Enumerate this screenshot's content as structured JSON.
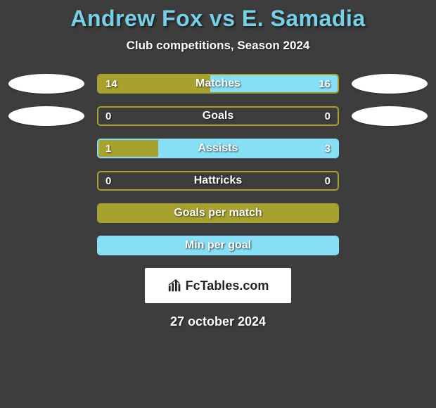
{
  "title": "Andrew Fox vs E. Samadia",
  "subtitle": "Club competitions, Season 2024",
  "colors": {
    "title_color": "#76d1e8",
    "background": "#3d3d3d",
    "ellipse": "#ffffff",
    "text": "#ffffff"
  },
  "bars": [
    {
      "label": "Matches",
      "left_value": "14",
      "right_value": "16",
      "left_pct": 46.7,
      "right_pct": 53.3,
      "left_color": "#a7a22f",
      "right_color": "#86dff5",
      "border_color": "#a7a22f",
      "show_ellipses": true
    },
    {
      "label": "Goals",
      "left_value": "0",
      "right_value": "0",
      "left_pct": 0,
      "right_pct": 0,
      "left_color": "#a7a22f",
      "right_color": "#86dff5",
      "border_color": "#a7a22f",
      "show_ellipses": true
    },
    {
      "label": "Assists",
      "left_value": "1",
      "right_value": "3",
      "left_pct": 25,
      "right_pct": 75,
      "left_color": "#a7a22f",
      "right_color": "#86dff5",
      "border_color": "#86dff5",
      "show_ellipses": false
    },
    {
      "label": "Hattricks",
      "left_value": "0",
      "right_value": "0",
      "left_pct": 0,
      "right_pct": 0,
      "left_color": "#a7a22f",
      "right_color": "#86dff5",
      "border_color": "#a7a22f",
      "show_ellipses": false
    },
    {
      "label": "Goals per match",
      "left_value": "",
      "right_value": "",
      "left_pct": 100,
      "right_pct": 0,
      "left_color": "#a7a22f",
      "right_color": "#86dff5",
      "border_color": "#a7a22f",
      "show_ellipses": false
    },
    {
      "label": "Min per goal",
      "left_value": "",
      "right_value": "",
      "left_pct": 0,
      "right_pct": 100,
      "left_color": "#a7a22f",
      "right_color": "#86dff5",
      "border_color": "#86dff5",
      "show_ellipses": false
    }
  ],
  "logo": {
    "text": "FcTables.com"
  },
  "date": "27 october 2024"
}
